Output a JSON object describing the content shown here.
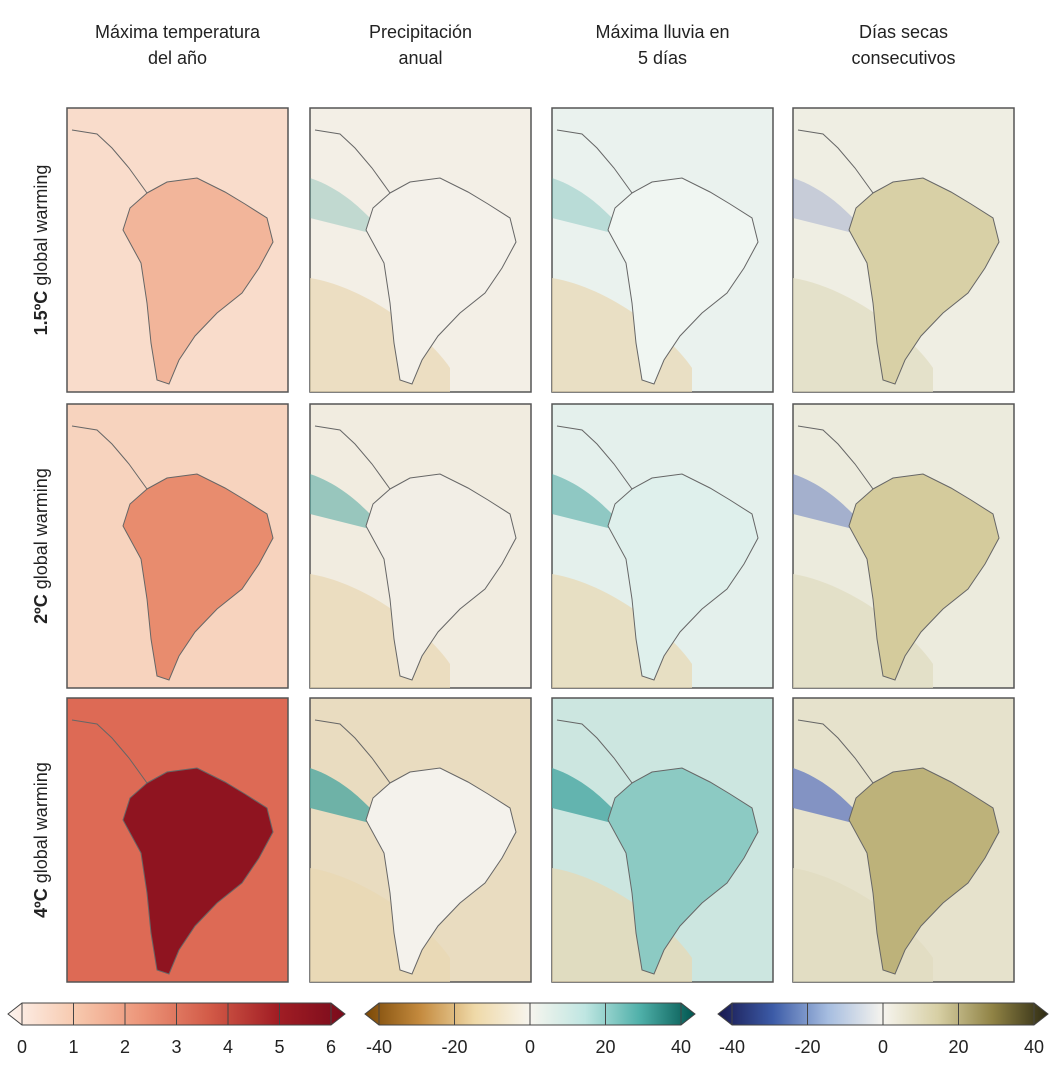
{
  "columns": [
    {
      "title": [
        "Máxima temperatura",
        "del año"
      ]
    },
    {
      "title": [
        "Precipitación",
        "anual"
      ]
    },
    {
      "title": [
        "Máxima lluvia en",
        "5 días"
      ]
    },
    {
      "title": [
        "Días secas",
        "consecutivos"
      ]
    }
  ],
  "rows": [
    {
      "bold": "1.5ºC",
      "text": "global warming"
    },
    {
      "bold": "2ºC",
      "text": "global warming"
    },
    {
      "bold": "4ºC",
      "text": "global warming"
    }
  ],
  "colorbars": [
    {
      "lim": [
        0,
        6
      ],
      "ticks": [
        0,
        1,
        2,
        3,
        4,
        5,
        6
      ],
      "colors": [
        "#fdf3ee",
        "#f7c9ae",
        "#ec9478",
        "#d25a47",
        "#a11d24",
        "#7a0b1b"
      ]
    },
    {
      "lim": [
        -40,
        40
      ],
      "ticks": [
        -40,
        -20,
        0,
        20,
        40
      ],
      "colors": [
        "#7a4806",
        "#c48a3e",
        "#efd9a8",
        "#f7f5ee",
        "#bfe6e2",
        "#4fb0a9",
        "#00554f"
      ]
    },
    {
      "lim": [
        -40,
        40
      ],
      "ticks": [
        -40,
        -20,
        0,
        20,
        40
      ],
      "colors": [
        "#18184f",
        "#3c5ba7",
        "#a6bde0",
        "#f6f4ee",
        "#d7cfa4",
        "#8f8244",
        "#2d2a12"
      ]
    }
  ]
}
